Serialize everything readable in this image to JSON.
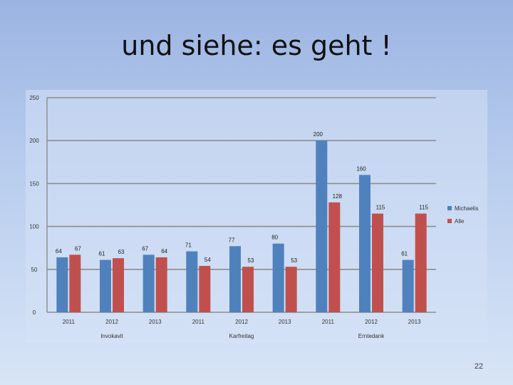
{
  "slide": {
    "title": "und siehe: es geht !",
    "page_number": "22"
  },
  "chart_data": {
    "type": "bar",
    "title": "",
    "xlabel": "",
    "ylabel": "",
    "ylim": [
      0,
      250
    ],
    "yticks": [
      0,
      50,
      100,
      150,
      200,
      250
    ],
    "grid": true,
    "legend_position": "right",
    "categories": [
      "2011",
      "2012",
      "2013",
      "2011",
      "2012",
      "2013",
      "2011",
      "2012",
      "2013"
    ],
    "groups": [
      {
        "label": "Invokavit",
        "span": [
          0,
          2
        ]
      },
      {
        "label": "Karfreitag",
        "span": [
          3,
          5
        ]
      },
      {
        "label": "Erntedank",
        "span": [
          6,
          8
        ]
      }
    ],
    "series": [
      {
        "name": "Michaelis",
        "color": "#4f81bd",
        "values": [
          64,
          61,
          67,
          71,
          77,
          80,
          200,
          160,
          61
        ]
      },
      {
        "name": "Alle",
        "color": "#c0504d",
        "values": [
          67,
          63,
          64,
          54,
          53,
          53,
          128,
          115,
          115
        ]
      }
    ]
  }
}
